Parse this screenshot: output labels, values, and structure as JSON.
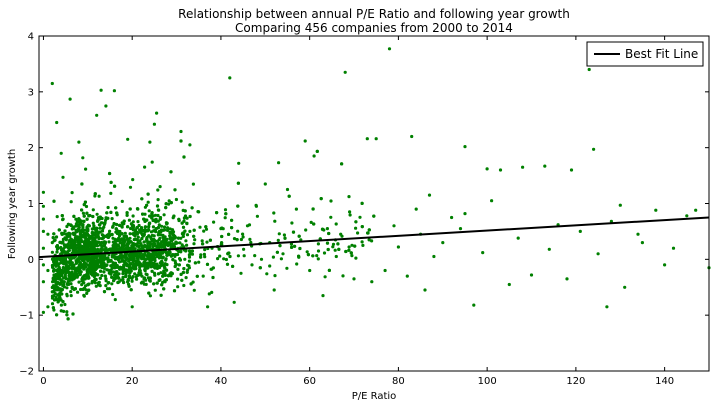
{
  "chart_data": {
    "type": "scatter",
    "title": "Relationship between annual P/E Ratio and following year growth",
    "subtitle": "Comparing 456 companies from 2000 to 2014",
    "xlabel": "P/E Ratio",
    "ylabel": "Following year growth",
    "xlim": [
      -1,
      150
    ],
    "ylim": [
      -2,
      4
    ],
    "xticks": [
      0,
      20,
      40,
      60,
      80,
      100,
      120,
      140
    ],
    "yticks": [
      -2,
      -1,
      0,
      1,
      2,
      3,
      4
    ],
    "grid": false,
    "legend_position": "top-right",
    "point_color": "#008000",
    "line_color": "#000000",
    "series": [
      {
        "kind": "scatter",
        "points": [
          [
            2,
            3.15
          ],
          [
            3,
            2.45
          ],
          [
            4,
            1.9
          ],
          [
            6,
            2.87
          ],
          [
            8,
            2.1
          ],
          [
            12,
            2.58
          ],
          [
            13,
            3.03
          ],
          [
            16,
            3.02
          ],
          [
            19,
            2.15
          ],
          [
            24,
            2.1
          ],
          [
            25,
            2.42
          ],
          [
            25.5,
            2.62
          ],
          [
            31,
            2.12
          ],
          [
            31,
            2.12
          ],
          [
            31,
            2.29
          ],
          [
            33,
            2.05
          ],
          [
            42,
            3.25
          ],
          [
            44,
            1.72
          ],
          [
            53,
            1.73
          ],
          [
            59,
            2.12
          ],
          [
            61,
            1.85
          ],
          [
            68,
            3.35
          ],
          [
            73,
            2.16
          ],
          [
            75,
            2.16
          ],
          [
            78,
            3.77
          ],
          [
            83,
            2.2
          ],
          [
            95,
            2.02
          ],
          [
            100,
            1.62
          ],
          [
            103,
            1.6
          ],
          [
            108,
            1.65
          ],
          [
            113,
            1.67
          ],
          [
            119,
            1.6
          ],
          [
            123,
            3.4
          ],
          [
            124,
            1.97
          ],
          [
            145,
            0.78
          ],
          [
            147,
            0.88
          ],
          [
            150,
            -0.15
          ],
          [
            127,
            -0.85
          ],
          [
            110,
            -0.28
          ],
          [
            97,
            -0.82
          ],
          [
            86,
            -0.55
          ],
          [
            74,
            -0.4
          ],
          [
            63,
            -0.65
          ],
          [
            52,
            -0.55
          ],
          [
            43,
            -0.77
          ],
          [
            37,
            -0.85
          ],
          [
            20,
            -0.85
          ],
          [
            0,
            -0.95
          ],
          [
            1,
            -0.85
          ],
          [
            3,
            -0.72
          ],
          [
            69,
            0.85
          ],
          [
            87,
            1.15
          ],
          [
            101,
            1.05
          ],
          [
            130,
            0.97
          ],
          [
            138,
            0.88
          ],
          [
            121,
            0.5
          ],
          [
            134,
            0.45
          ],
          [
            142,
            0.2
          ],
          [
            118,
            -0.35
          ],
          [
            131,
            -0.5
          ],
          [
            90,
            0.3
          ],
          [
            95,
            0.82
          ],
          [
            92,
            0.75
          ],
          [
            85,
            0.45
          ],
          [
            80,
            0.22
          ],
          [
            77,
            -0.2
          ],
          [
            66,
            0.05
          ],
          [
            64,
            0.55
          ],
          [
            57,
            0.9
          ],
          [
            55,
            1.25
          ],
          [
            50,
            1.35
          ],
          [
            48,
            0.95
          ],
          [
            46,
            0.6
          ],
          [
            58,
            0.35
          ],
          [
            54,
            0.1
          ],
          [
            60,
            -0.2
          ],
          [
            70,
            -0.35
          ],
          [
            82,
            -0.3
          ],
          [
            105,
            -0.45
          ],
          [
            114,
            0.18
          ],
          [
            125,
            0.1
          ],
          [
            135,
            0.3
          ],
          [
            140,
            -0.1
          ],
          [
            128,
            0.68
          ],
          [
            116,
            0.62
          ],
          [
            107,
            0.38
          ],
          [
            99,
            0.12
          ],
          [
            94,
            0.55
          ],
          [
            88,
            0.05
          ],
          [
            84,
            0.9
          ],
          [
            79,
            0.6
          ],
          [
            72,
            0.25
          ],
          [
            67,
            0.45
          ],
          [
            62,
            0.15
          ],
          [
            56,
            0.65
          ],
          [
            51,
            0.3
          ],
          [
            47,
            -0.1
          ],
          [
            45,
            0.4
          ],
          [
            40,
            0.55
          ],
          [
            38,
            0.2
          ],
          [
            36,
            -0.3
          ],
          [
            35,
            0.85
          ],
          [
            33,
            0.5
          ],
          [
            0,
            1.2
          ],
          [
            0,
            0.95
          ],
          [
            0,
            0.72
          ],
          [
            0,
            0.5
          ],
          [
            0,
            0.2
          ],
          [
            0,
            -0.1
          ],
          [
            0,
            -0.4
          ],
          [
            1,
            0.45
          ],
          [
            1,
            -0.2
          ],
          [
            2,
            0.3
          ]
        ],
        "cluster": {
          "x_mode": 16,
          "x_range": [
            2,
            45
          ],
          "y_center": 0.15,
          "y_spread": 0.32,
          "count": 2800
        }
      },
      {
        "kind": "line",
        "name": "Best Fit Line",
        "x": [
          -1,
          150
        ],
        "y": [
          0.04,
          0.75
        ]
      }
    ]
  }
}
